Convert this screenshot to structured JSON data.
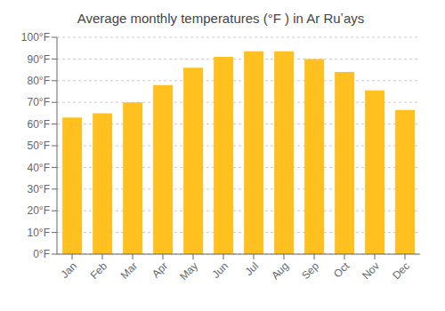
{
  "chart_data": {
    "type": "bar",
    "title": "Average monthly temperatures (°F ) in Ar Ruʽays",
    "categories": [
      "Jan",
      "Feb",
      "Mar",
      "Apr",
      "May",
      "Jun",
      "Jul",
      "Aug",
      "Sep",
      "Oct",
      "Nov",
      "Dec"
    ],
    "values": [
      63,
      65,
      70,
      78,
      86,
      91,
      93.5,
      93.5,
      90,
      84,
      75.5,
      66.5
    ],
    "color": "#FFC020",
    "ylim": [
      0,
      100
    ],
    "yticks": [
      {
        "value": 0,
        "label": "0°F"
      },
      {
        "value": 10,
        "label": "10°F"
      },
      {
        "value": 20,
        "label": "20°F"
      },
      {
        "value": 30,
        "label": "30°F"
      },
      {
        "value": 40,
        "label": "40°F"
      },
      {
        "value": 50,
        "label": "50°F"
      },
      {
        "value": 60,
        "label": "60°F"
      },
      {
        "value": 70,
        "label": "70°F"
      },
      {
        "value": 80,
        "label": "80°F"
      },
      {
        "value": 90,
        "label": "90°F"
      },
      {
        "value": 100,
        "label": "100°F"
      }
    ],
    "grid": true
  }
}
